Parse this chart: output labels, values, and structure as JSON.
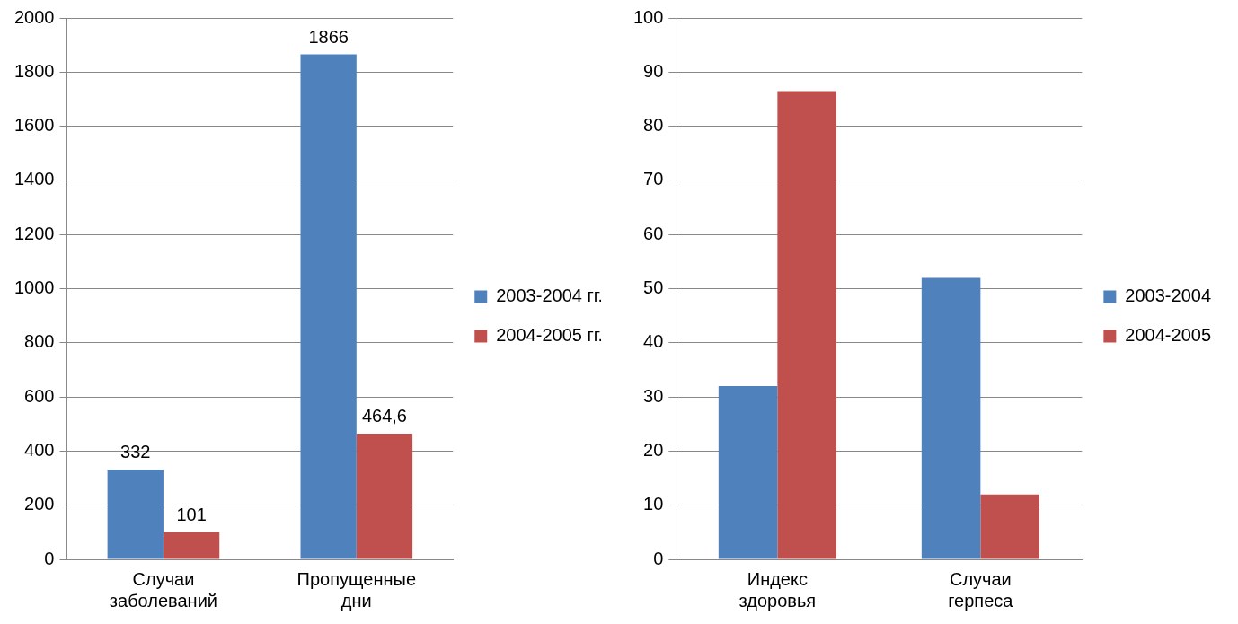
{
  "chart_data": [
    {
      "type": "bar",
      "categories": [
        "Случаи заболеваний",
        "Пропущенные дни"
      ],
      "series": [
        {
          "name": "2003-2004 гг.",
          "color": "#4f81bd",
          "values": [
            332,
            1866
          ],
          "value_labels": [
            "332",
            "1866"
          ]
        },
        {
          "name": "2004-2005 гг.",
          "color": "#c0504d",
          "values": [
            101,
            464.6
          ],
          "value_labels": [
            "101",
            "464,6"
          ]
        }
      ],
      "ylim": [
        0,
        2000
      ],
      "yticks": [
        0,
        200,
        400,
        600,
        800,
        1000,
        1200,
        1400,
        1600,
        1800,
        2000
      ],
      "grid": "y",
      "legend": "right"
    },
    {
      "type": "bar",
      "categories": [
        "Индекс здоровья",
        "Случаи герпеса"
      ],
      "series": [
        {
          "name": "2003-2004",
          "color": "#4f81bd",
          "values": [
            32,
            52
          ]
        },
        {
          "name": "2004-2005",
          "color": "#c0504d",
          "values": [
            86.5,
            12
          ]
        }
      ],
      "ylim": [
        0,
        100
      ],
      "yticks": [
        0,
        10,
        20,
        30,
        40,
        50,
        60,
        70,
        80,
        90,
        100
      ],
      "grid": "y",
      "legend": "right"
    }
  ]
}
